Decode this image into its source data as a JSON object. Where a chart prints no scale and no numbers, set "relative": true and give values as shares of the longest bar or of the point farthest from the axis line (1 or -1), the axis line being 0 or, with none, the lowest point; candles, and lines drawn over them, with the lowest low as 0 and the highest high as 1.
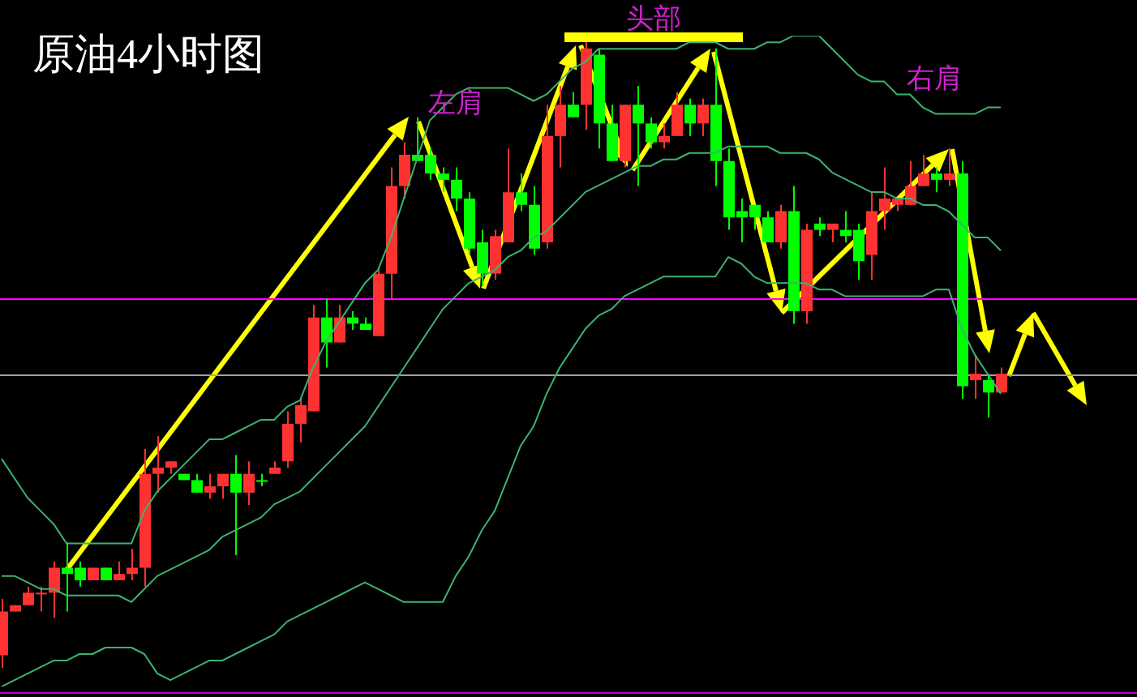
{
  "chart_data": [
    {
      "type": "candlestick",
      "title": "原油4小时图",
      "relative": true,
      "categories": [
        null,
        null,
        null,
        null,
        null,
        null,
        null,
        null,
        null,
        null,
        null,
        null,
        null,
        null,
        null,
        null,
        null,
        null,
        null,
        null,
        null,
        null,
        null,
        null,
        null,
        null,
        null,
        null,
        null,
        null,
        null,
        null,
        null,
        null,
        null,
        null,
        null,
        null,
        null,
        null,
        null,
        null,
        null,
        null,
        null,
        null,
        null,
        null,
        null,
        null,
        null,
        null,
        null,
        null,
        null,
        null,
        null,
        null,
        null,
        null,
        null,
        null,
        null,
        null,
        null,
        null,
        null,
        null,
        null,
        null,
        null,
        null,
        null,
        null,
        null,
        null,
        null,
        null
      ],
      "ohlc": [
        [
          0.02,
          0.11,
          0,
          0.09
        ],
        [
          0.09,
          0.1,
          0.09,
          0.1
        ],
        [
          0.1,
          0.13,
          0.1,
          0.12
        ],
        [
          0.12,
          0.13,
          0.09,
          0.12
        ],
        [
          0.12,
          0.17,
          0.08,
          0.16
        ],
        [
          0.16,
          0.2,
          0.09,
          0.15
        ],
        [
          0.16,
          0.17,
          0.13,
          0.14
        ],
        [
          0.14,
          0.16,
          0.14,
          0.16
        ],
        [
          0.16,
          0.16,
          0.14,
          0.14
        ],
        [
          0.14,
          0.17,
          0.14,
          0.15
        ],
        [
          0.15,
          0.19,
          0.14,
          0.16
        ],
        [
          0.16,
          0.35,
          0.13,
          0.31
        ],
        [
          0.31,
          0.37,
          0.28,
          0.32
        ],
        [
          0.32,
          0.33,
          0.31,
          0.33
        ],
        [
          0.31,
          0.31,
          0.3,
          0.3
        ],
        [
          0.3,
          0.31,
          0.28,
          0.28
        ],
        [
          0.28,
          0.31,
          0.27,
          0.29
        ],
        [
          0.29,
          0.31,
          0.27,
          0.31
        ],
        [
          0.31,
          0.34,
          0.18,
          0.28
        ],
        [
          0.28,
          0.33,
          0.26,
          0.31
        ],
        [
          0.3,
          0.31,
          0.29,
          0.3
        ],
        [
          0.31,
          0.33,
          0.31,
          0.32
        ],
        [
          0.33,
          0.41,
          0.32,
          0.39
        ],
        [
          0.39,
          0.43,
          0.36,
          0.42
        ],
        [
          0.41,
          0.58,
          0.41,
          0.56
        ],
        [
          0.56,
          0.59,
          0.48,
          0.52
        ],
        [
          0.52,
          0.58,
          0.52,
          0.56
        ],
        [
          0.56,
          0.57,
          0.54,
          0.55
        ],
        [
          0.55,
          0.56,
          0.54,
          0.54
        ],
        [
          0.53,
          0.64,
          0.53,
          0.63
        ],
        [
          0.63,
          0.8,
          0.59,
          0.77
        ],
        [
          0.77,
          0.84,
          0.75,
          0.82
        ],
        [
          0.82,
          0.88,
          0.81,
          0.81
        ],
        [
          0.82,
          0.83,
          0.78,
          0.79
        ],
        [
          0.79,
          0.8,
          0.76,
          0.78
        ],
        [
          0.78,
          0.8,
          0.73,
          0.75
        ],
        [
          0.75,
          0.76,
          0.66,
          0.67
        ],
        [
          0.68,
          0.7,
          0.61,
          0.63
        ],
        [
          0.63,
          0.7,
          0.62,
          0.69
        ],
        [
          0.68,
          0.83,
          0.68,
          0.76
        ],
        [
          0.76,
          0.79,
          0.73,
          0.74
        ],
        [
          0.74,
          0.77,
          0.66,
          0.67
        ],
        [
          0.68,
          0.9,
          0.67,
          0.85
        ],
        [
          0.85,
          0.93,
          0.8,
          0.9
        ],
        [
          0.9,
          0.92,
          0.88,
          0.88
        ],
        [
          0.9,
          1,
          0.86,
          0.99
        ],
        [
          0.98,
          0.99,
          0.83,
          0.87
        ],
        [
          0.87,
          0.9,
          0.81,
          0.81
        ],
        [
          0.81,
          0.9,
          0.8,
          0.9
        ],
        [
          0.9,
          0.93,
          0.77,
          0.87
        ],
        [
          0.87,
          0.88,
          0.83,
          0.84
        ],
        [
          0.84,
          0.87,
          0.83,
          0.85
        ],
        [
          0.85,
          0.92,
          0.85,
          0.9
        ],
        [
          0.9,
          0.91,
          0.85,
          0.87
        ],
        [
          0.87,
          0.91,
          0.85,
          0.9
        ],
        [
          0.9,
          0.99,
          0.77,
          0.81
        ],
        [
          0.81,
          0.83,
          0.7,
          0.72
        ],
        [
          0.73,
          0.75,
          0.68,
          0.72
        ],
        [
          0.74,
          0.74,
          0.7,
          0.72
        ],
        [
          0.72,
          0.73,
          0.68,
          0.68
        ],
        [
          0.68,
          0.74,
          0.67,
          0.73
        ],
        [
          0.73,
          0.77,
          0.55,
          0.57
        ],
        [
          0.57,
          0.71,
          0.55,
          0.7
        ],
        [
          0.71,
          0.72,
          0.69,
          0.7
        ],
        [
          0.7,
          0.71,
          0.68,
          0.71
        ],
        [
          0.7,
          0.73,
          0.68,
          0.69
        ],
        [
          0.7,
          0.71,
          0.62,
          0.65
        ],
        [
          0.66,
          0.76,
          0.62,
          0.73
        ],
        [
          0.73,
          0.8,
          0.7,
          0.75
        ],
        [
          0.74,
          0.75,
          0.73,
          0.75
        ],
        [
          0.74,
          0.81,
          0.74,
          0.77
        ],
        [
          0.77,
          0.82,
          0.77,
          0.79
        ],
        [
          0.79,
          0.8,
          0.76,
          0.78
        ],
        [
          0.78,
          0.83,
          0.77,
          0.79
        ],
        [
          0.79,
          0.81,
          0.43,
          0.45
        ],
        [
          0.46,
          0.5,
          0.43,
          0.47
        ],
        [
          0.46,
          0.47,
          0.4,
          0.44
        ],
        [
          0.44,
          0.48,
          0.44,
          0.47
        ]
      ],
      "colors": [
        "#ff3232",
        "#ff3232",
        "#ff3232",
        "#ff3232",
        "#ff3232",
        "#00ff00",
        "#00ff00",
        "#ff3232",
        "#00ff00",
        "#ff3232",
        "#ff3232",
        "#ff3232",
        "#ff3232",
        "#ff3232",
        "#00ff00",
        "#00ff00",
        "#ff3232",
        "#ff3232",
        "#00ff00",
        "#ff3232",
        "#00ff00",
        "#ff3232",
        "#ff3232",
        "#ff3232",
        "#ff3232",
        "#00ff00",
        "#ff3232",
        "#00ff00",
        "#00ff00",
        "#ff3232",
        "#ff3232",
        "#ff3232",
        "#00ff00",
        "#00ff00",
        "#00ff00",
        "#00ff00",
        "#00ff00",
        "#00ff00",
        "#ff3232",
        "#ff3232",
        "#00ff00",
        "#00ff00",
        "#ff3232",
        "#ff3232",
        "#00ff00",
        "#ff3232",
        "#00ff00",
        "#00ff00",
        "#ff3232",
        "#00ff00",
        "#00ff00",
        "#ff3232",
        "#ff3232",
        "#00ff00",
        "#ff3232",
        "#00ff00",
        "#00ff00",
        "#00ff00",
        "#00ff00",
        "#00ff00",
        "#ff3232",
        "#00ff00",
        "#ff3232",
        "#00ff00",
        "#ff3232",
        "#00ff00",
        "#00ff00",
        "#ff3232",
        "#ff3232",
        "#ff3232",
        "#ff3232",
        "#ff3232",
        "#00ff00",
        "#ff3232",
        "#00ff00",
        "#ff3232",
        "#00ff00",
        "#ff3232"
      ],
      "ref_lines": [
        {
          "axis": "y",
          "value": 0.59,
          "color": "#ff00ff"
        },
        {
          "axis": "y",
          "value": 0.47,
          "color": "#a0a0a0"
        },
        {
          "axis": "y",
          "value": -0.04,
          "color": "#c000c0"
        }
      ],
      "annotations": [
        "左肩",
        "头部",
        "右肩"
      ]
    },
    {
      "type": "line",
      "relative": true,
      "categories": [
        null,
        null,
        null,
        null,
        null,
        null,
        null,
        null,
        null,
        null,
        null,
        null,
        null,
        null,
        null,
        null,
        null,
        null,
        null,
        null,
        null,
        null,
        null,
        null,
        null,
        null,
        null,
        null,
        null,
        null,
        null,
        null,
        null,
        null,
        null,
        null,
        null,
        null,
        null,
        null,
        null,
        null,
        null,
        null,
        null,
        null,
        null,
        null,
        null,
        null,
        null,
        null,
        null,
        null,
        null,
        null,
        null,
        null,
        null,
        null,
        null,
        null,
        null,
        null,
        null,
        null,
        null,
        null,
        null,
        null,
        null,
        null,
        null,
        null,
        null,
        null,
        null,
        null
      ],
      "series": [
        {
          "color": "#3cb371",
          "values": [
            0.35,
            0.32,
            0.29,
            0.27,
            0.25,
            0.22,
            0.22,
            0.22,
            0.22,
            0.22,
            0.22,
            0.27,
            0.3,
            0.32,
            0.34,
            0.36,
            0.38,
            0.38,
            0.39,
            0.4,
            0.41,
            0.41,
            0.43,
            0.44,
            0.49,
            0.53,
            0.56,
            0.59,
            0.62,
            0.64,
            0.69,
            0.75,
            0.81,
            0.87,
            0.89,
            0.91,
            0.92,
            0.92,
            0.92,
            0.92,
            0.91,
            0.9,
            0.91,
            0.93,
            0.95,
            0.96,
            0.98,
            0.98,
            0.98,
            0.98,
            0.98,
            0.98,
            0.98,
            0.99,
            0.99,
            0.99,
            0.98,
            0.98,
            0.98,
            0.99,
            0.99,
            1,
            1,
            1,
            0.98,
            0.96,
            0.94,
            0.93,
            0.93,
            0.91,
            0.91,
            0.89,
            0.88,
            0.88,
            0.88,
            0.88,
            0.89,
            0.89
          ]
        },
        {
          "color": "#3cb371",
          "values": [
            0.17,
            0.17,
            0.16,
            0.15,
            0.15,
            0.14,
            0.14,
            0.14,
            0.14,
            0.14,
            0.13,
            0.15,
            0.17,
            0.18,
            0.19,
            0.2,
            0.21,
            0.23,
            0.24,
            0.25,
            0.26,
            0.28,
            0.29,
            0.3,
            0.32,
            0.34,
            0.36,
            0.38,
            0.4,
            0.43,
            0.46,
            0.49,
            0.52,
            0.55,
            0.58,
            0.6,
            0.62,
            0.63,
            0.64,
            0.66,
            0.67,
            0.69,
            0.7,
            0.72,
            0.74,
            0.76,
            0.77,
            0.78,
            0.79,
            0.8,
            0.8,
            0.81,
            0.81,
            0.82,
            0.82,
            0.82,
            0.83,
            0.83,
            0.83,
            0.83,
            0.82,
            0.82,
            0.82,
            0.81,
            0.79,
            0.78,
            0.77,
            0.76,
            0.76,
            0.75,
            0.75,
            0.74,
            0.74,
            0.73,
            0.71,
            0.69,
            0.69,
            0.67
          ]
        },
        {
          "color": "#3cb371",
          "values": [
            0,
            0.01,
            0.02,
            0.03,
            0.04,
            0.04,
            0.05,
            0.05,
            0.06,
            0.06,
            0.06,
            0.05,
            0.02,
            0.01,
            0.02,
            0.03,
            0.04,
            0.04,
            0.05,
            0.06,
            0.07,
            0.08,
            0.1,
            0.11,
            0.12,
            0.13,
            0.14,
            0.15,
            0.16,
            0.15,
            0.14,
            0.13,
            0.13,
            0.13,
            0.13,
            0.17,
            0.2,
            0.24,
            0.27,
            0.32,
            0.37,
            0.4,
            0.45,
            0.49,
            0.52,
            0.55,
            0.57,
            0.58,
            0.6,
            0.61,
            0.62,
            0.63,
            0.63,
            0.63,
            0.63,
            0.63,
            0.66,
            0.65,
            0.63,
            0.62,
            0.62,
            0.62,
            0.62,
            0.61,
            0.61,
            0.6,
            0.6,
            0.6,
            0.6,
            0.6,
            0.6,
            0.6,
            0.61,
            0.61,
            0.55,
            0.51,
            0.48,
            0.45
          ]
        }
      ]
    }
  ]
}
